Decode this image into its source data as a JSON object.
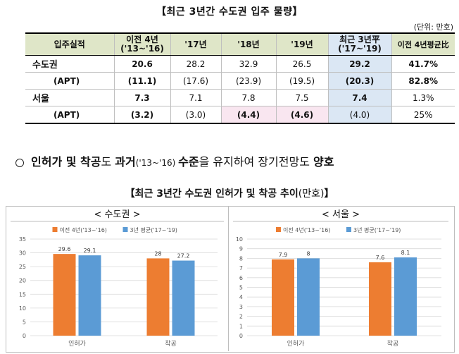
{
  "title": "【최근 3년간 수도권 입주 물량】",
  "unit": "(단위: 만호)",
  "table": {
    "headers": [
      "입주실적",
      "이전 4년\n('13~'16)",
      "'17년",
      "'18년",
      "'19년",
      "최근 3년平\n('17~'19)",
      "이전 4년평균比"
    ],
    "rows": [
      {
        "label": "수도권",
        "cells": [
          "20.6",
          "28.2",
          "32.9",
          "26.5",
          "29.2",
          "41.7%"
        ]
      },
      {
        "label": "(APT)",
        "cells": [
          "(11.1)",
          "(17.6)",
          "(23.9)",
          "(19.5)",
          "(20.3)",
          "82.8%"
        ]
      },
      {
        "label": "서울",
        "cells": [
          "7.3",
          "7.1",
          "7.8",
          "7.5",
          "7.4",
          "1.3%"
        ]
      },
      {
        "label": "(APT)",
        "cells": [
          "(3.2)",
          "(3.0)",
          "(4.4)",
          "(4.6)",
          "(4.0)",
          "25%"
        ]
      }
    ]
  },
  "bullet": {
    "p1": "인허가 및 착공",
    "p2": "도 ",
    "p3": "과거",
    "p4": "('13~'16) ",
    "p5": "수준",
    "p6": "을 유지하여 장기전망도 ",
    "p7": "양호"
  },
  "chart_title": {
    "main": "【최근 3년간 수도권 인허가 및 착공 추이",
    "unit": "(만호)",
    "close": "】"
  },
  "colors": {
    "orange": "#ed7d31",
    "blue": "#5b9bd5"
  },
  "chart_data": [
    {
      "type": "bar",
      "title": "< 수도권 >",
      "categories": [
        "인허가",
        "착공"
      ],
      "series": [
        {
          "name": "이전 4년('13~'16)",
          "values": [
            29.6,
            28
          ]
        },
        {
          "name": "3년 평균('17~'19)",
          "values": [
            29.1,
            27.2
          ]
        }
      ],
      "ylim": [
        0,
        35
      ],
      "yticks": [
        0,
        5,
        10,
        15,
        20,
        25,
        30,
        35
      ],
      "legend": "top"
    },
    {
      "type": "bar",
      "title": "< 서울 >",
      "categories": [
        "인허가",
        "착공"
      ],
      "series": [
        {
          "name": "이전 4년('13~'16)",
          "values": [
            7.9,
            7.6
          ]
        },
        {
          "name": "3년 평균('17~'19)",
          "values": [
            8,
            8.1
          ]
        }
      ],
      "ylim": [
        0,
        10
      ],
      "yticks": [
        0,
        1,
        2,
        3,
        4,
        5,
        6,
        7,
        8,
        9,
        10
      ],
      "legend": "top"
    }
  ]
}
